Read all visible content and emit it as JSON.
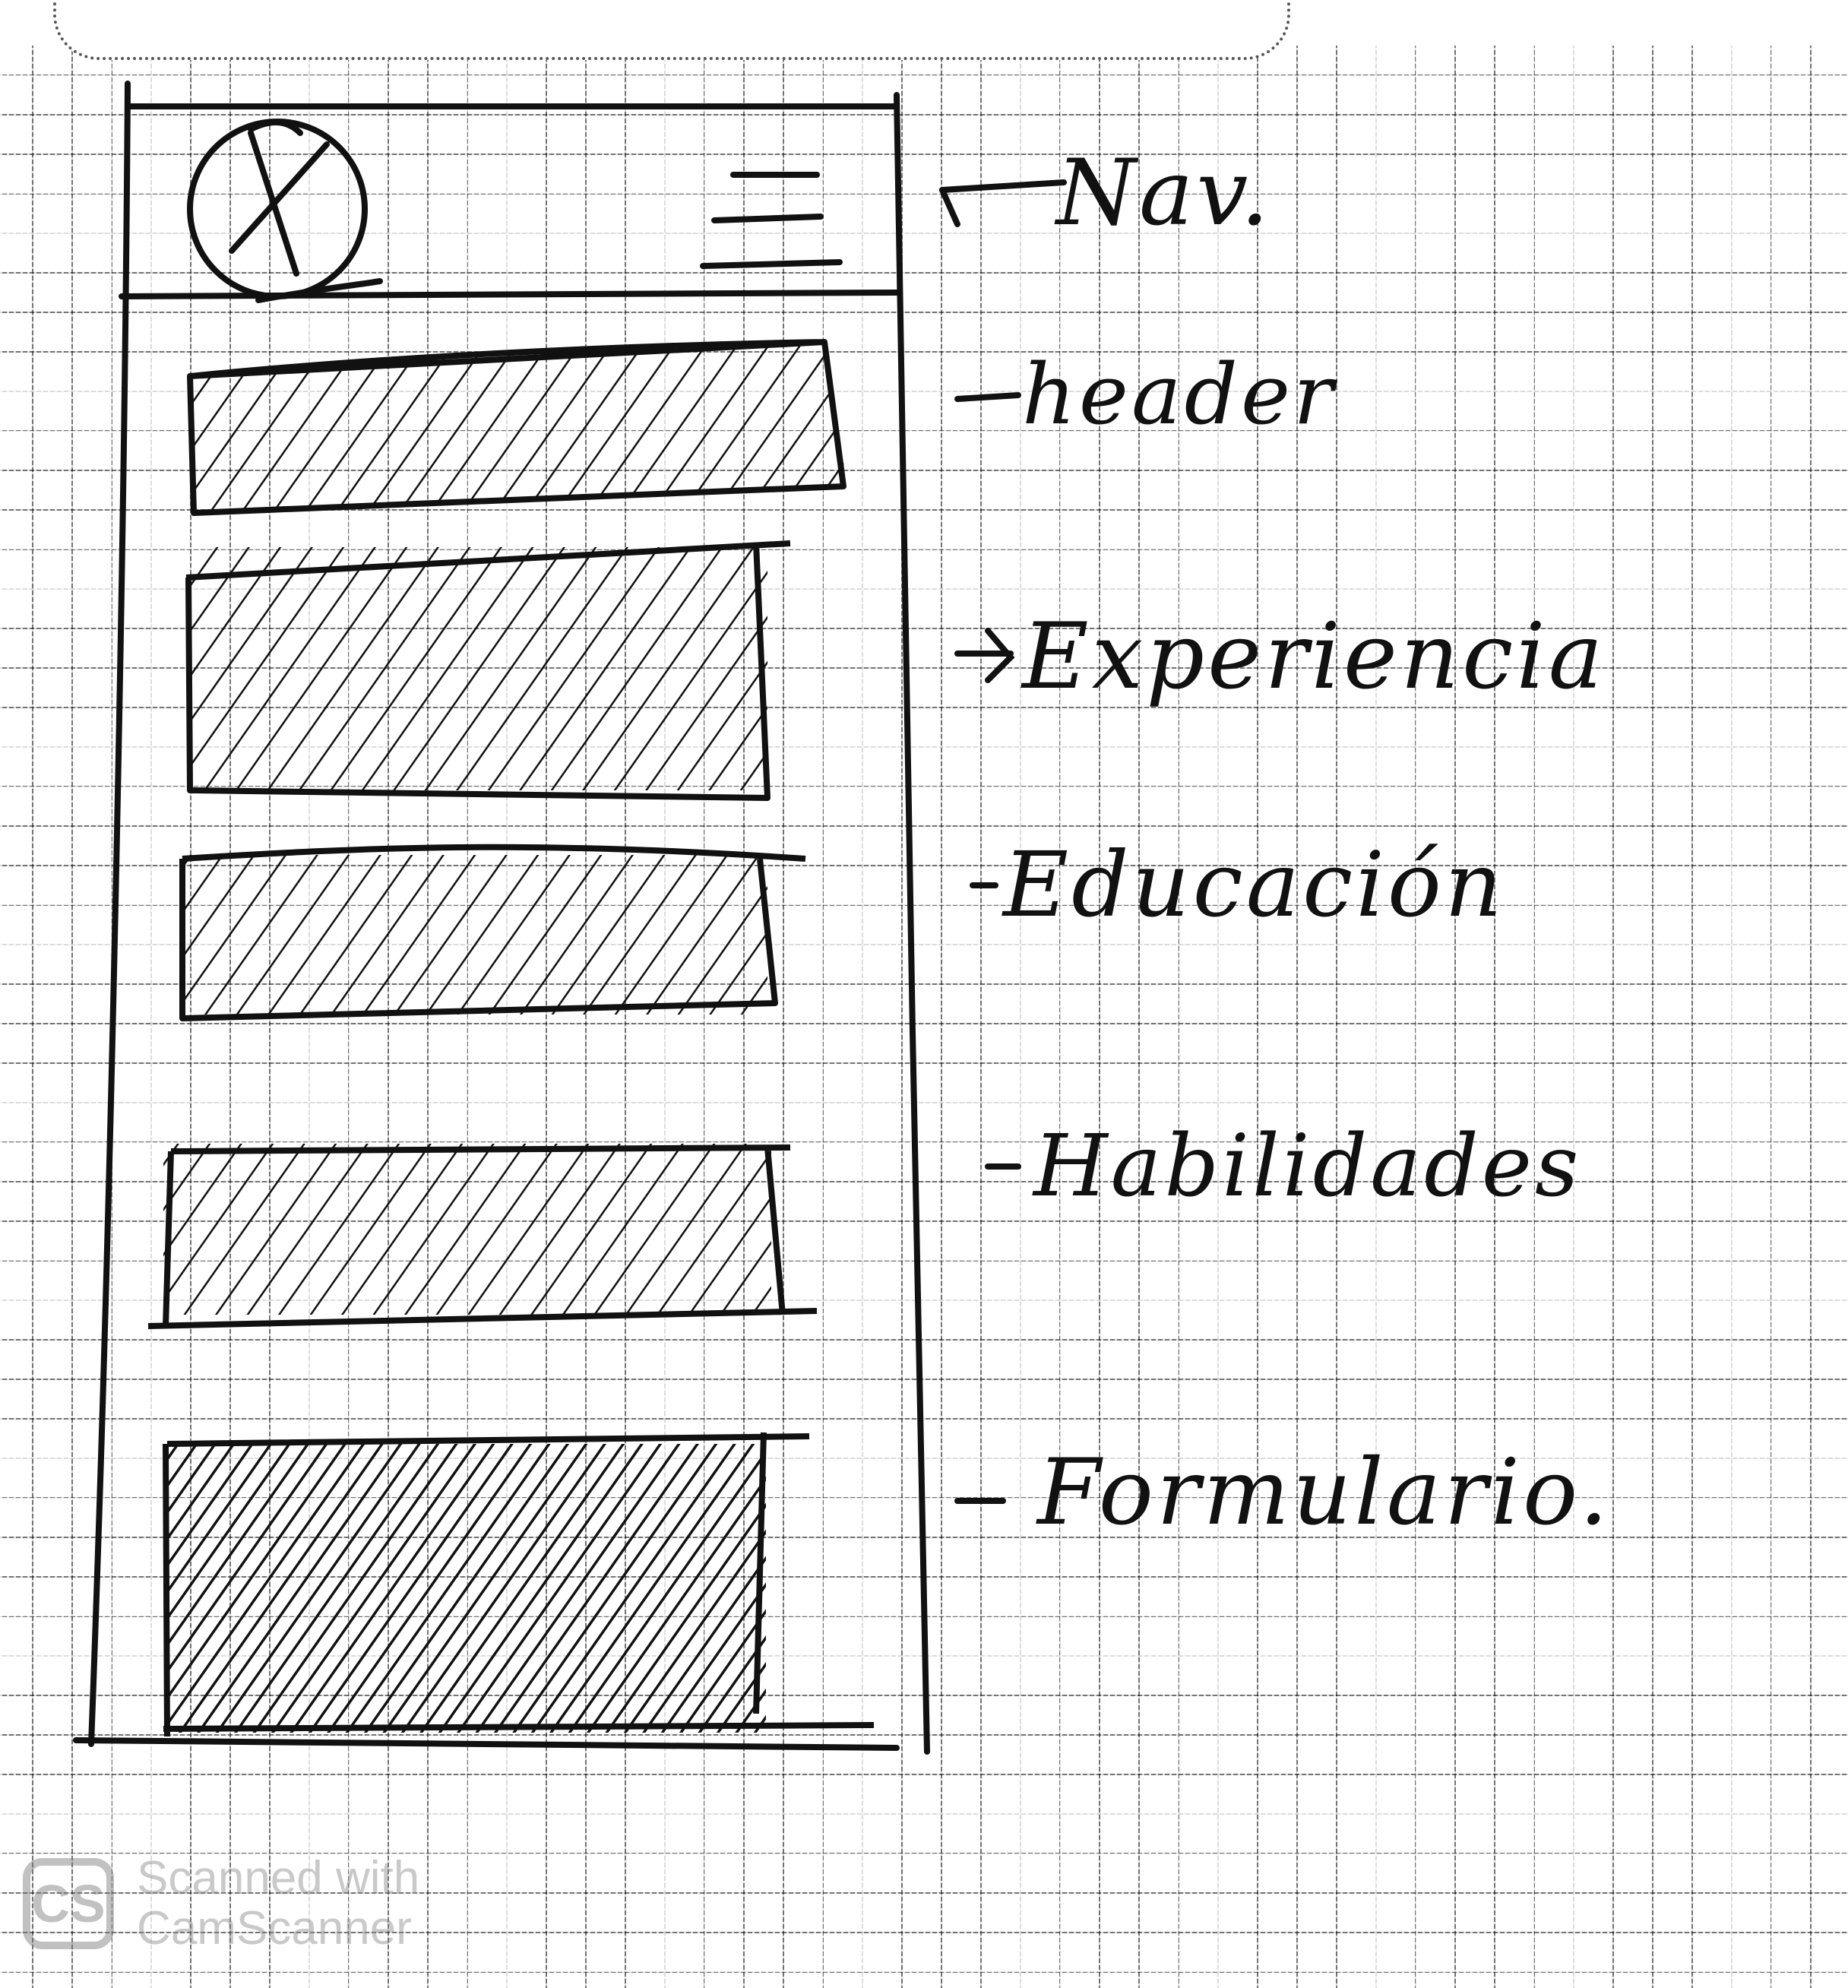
{
  "annotations": {
    "nav": "Nav.",
    "header": "header",
    "experiencia": "Experiencia",
    "educacion": "Educación",
    "habilidades": "Habilidades",
    "formulario": "Formulario."
  },
  "logo": {
    "mark": "X",
    "icon": "circle-x-logo-icon"
  },
  "menu": {
    "icon": "hamburger-menu-icon"
  },
  "watermark": {
    "logo": "CS",
    "line1": "Scanned with",
    "line2": "CamScanner"
  },
  "colors": {
    "ink": "#111111",
    "paper": "#ffffff",
    "grid": "#555555"
  }
}
